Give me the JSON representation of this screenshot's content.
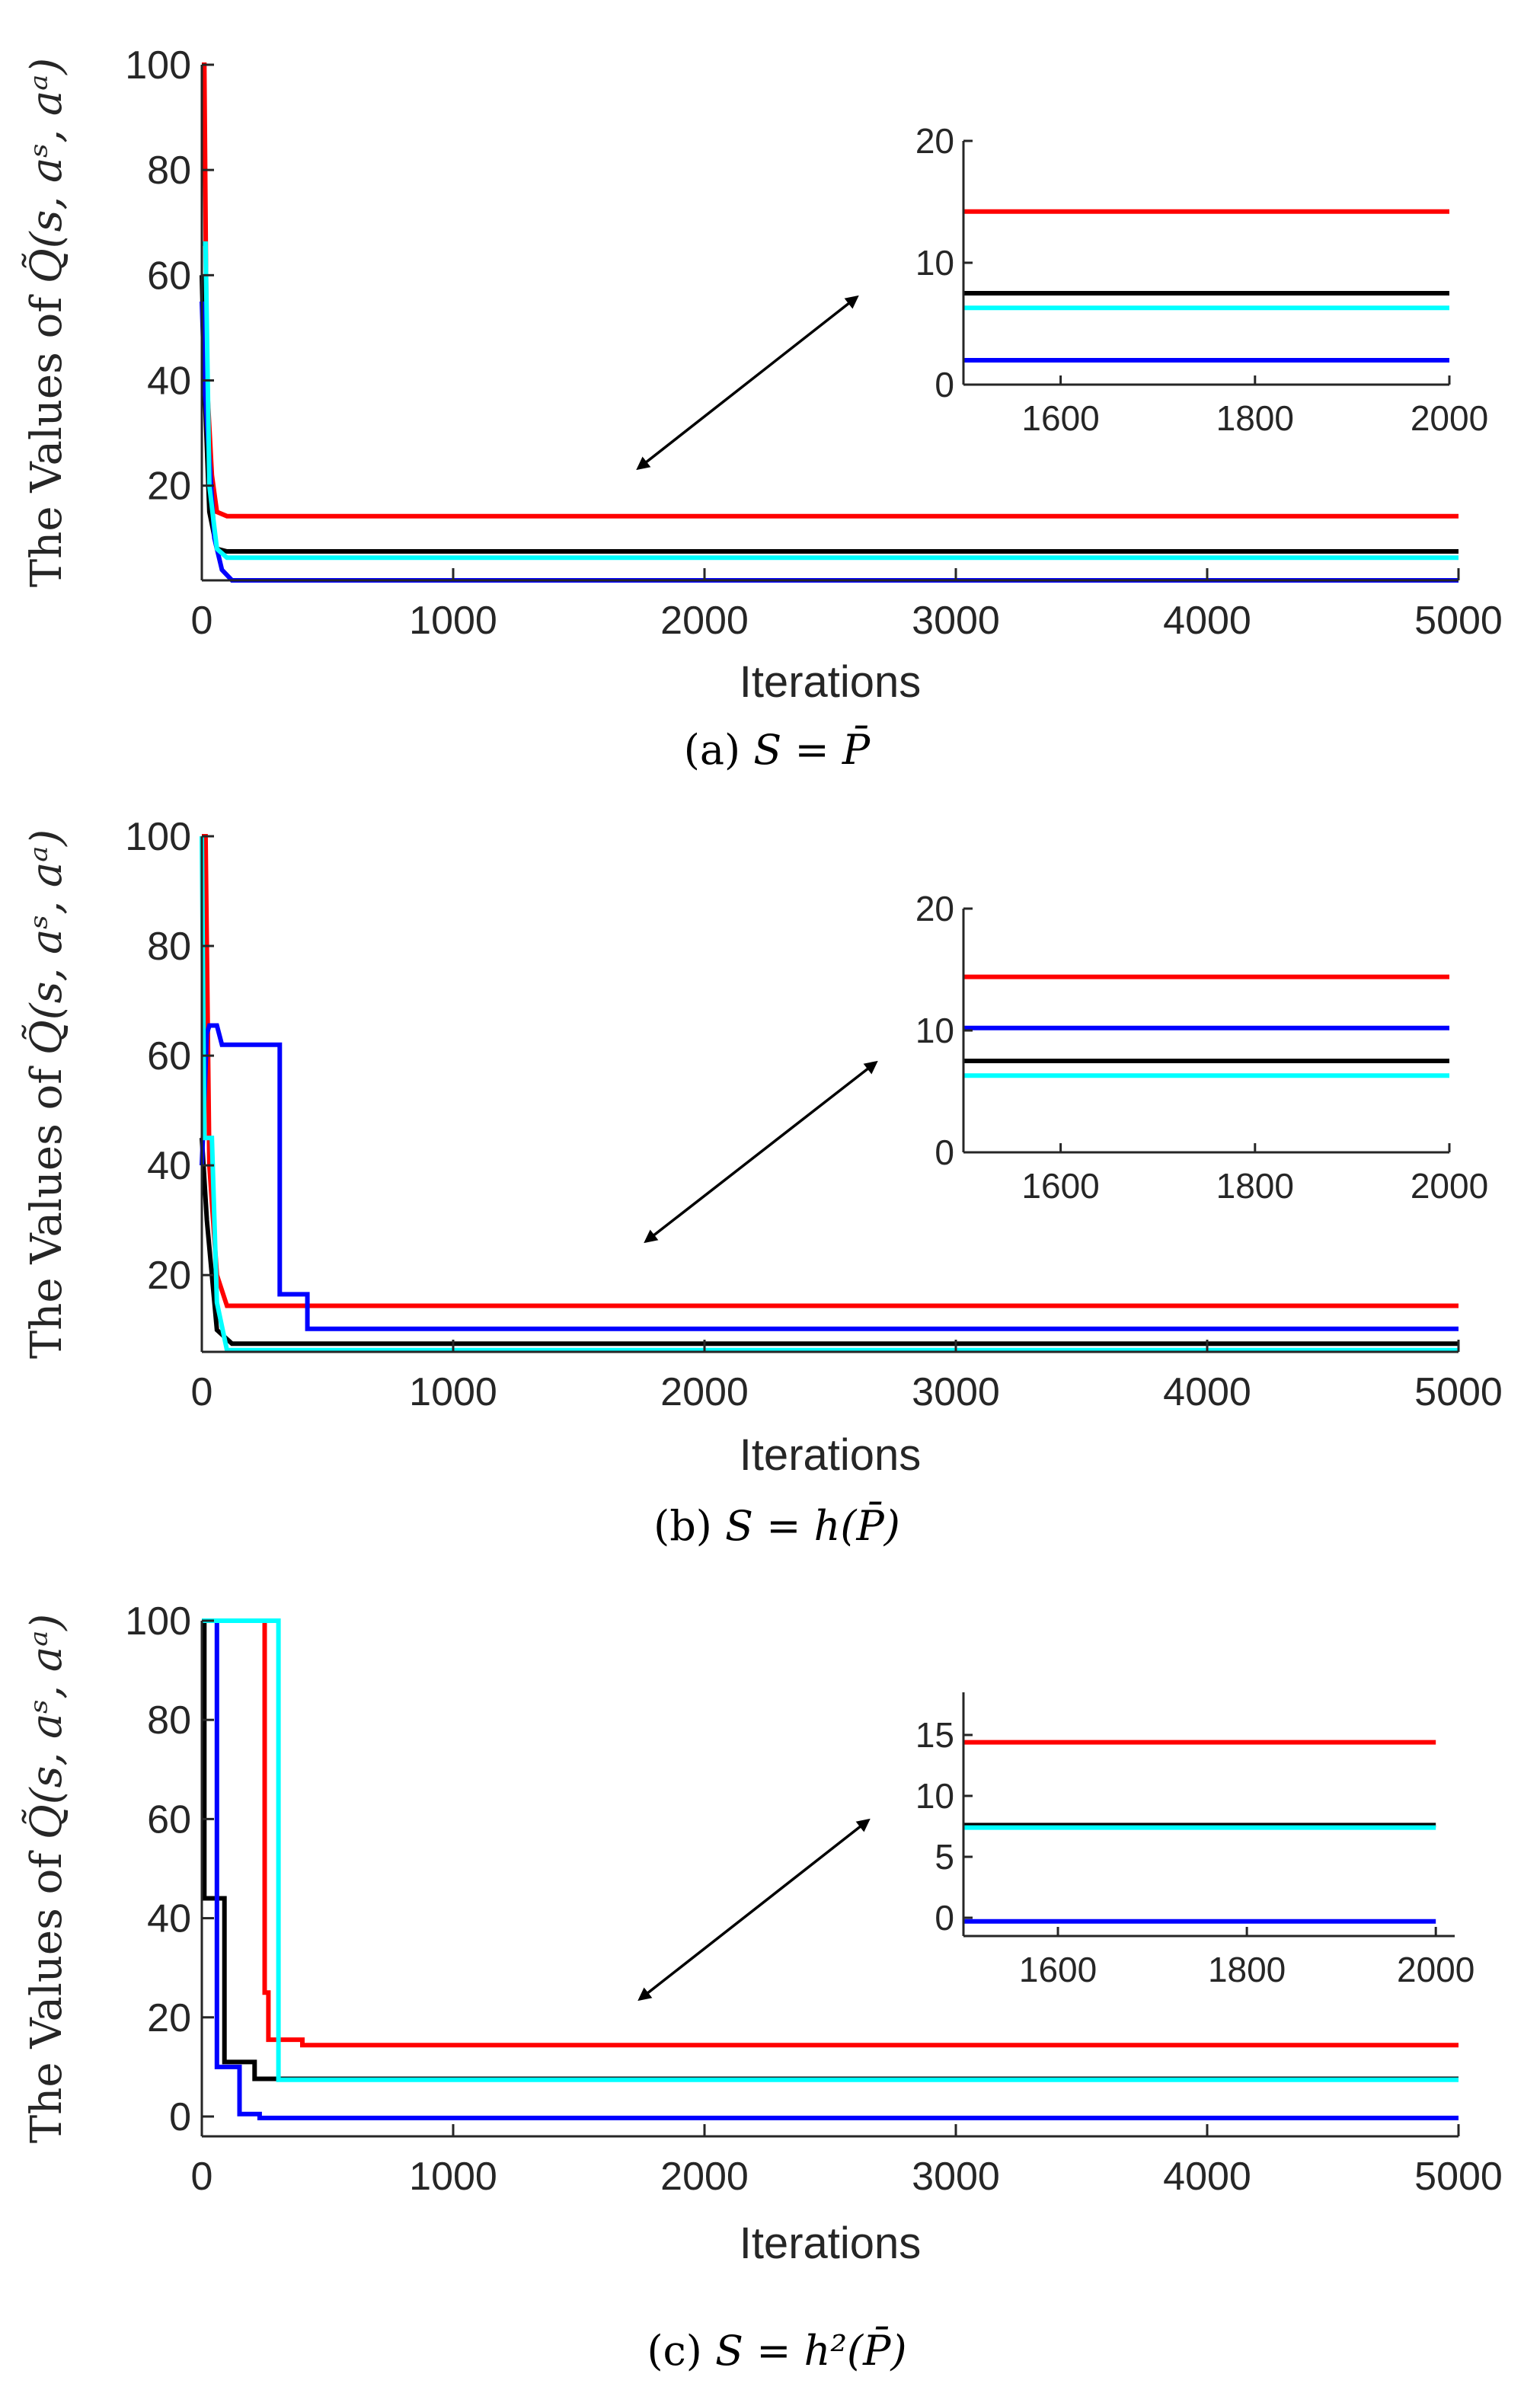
{
  "chart_data": [
    {
      "type": "line",
      "caption": {
        "label": "(a)",
        "lhs": "S",
        "eq": "=",
        "rhs": "P̄"
      },
      "ylabel": {
        "prefix": "The Values of ",
        "func": "Q̃",
        "args": "(s, aˢ, aᵃ)"
      },
      "xlabel": "Iterations",
      "xlim": [
        0,
        5000
      ],
      "ylim": [
        2,
        100
      ],
      "xticks": [
        0,
        1000,
        2000,
        3000,
        4000,
        5000
      ],
      "yticks": [
        20,
        40,
        60,
        80,
        100
      ],
      "series": [
        {
          "color": "#ff0000",
          "x": [
            0,
            10,
            20,
            40,
            60,
            100,
            5000
          ],
          "y": [
            100,
            100,
            40,
            22,
            15,
            14.2,
            14.2
          ]
        },
        {
          "color": "#000000",
          "x": [
            0,
            10,
            30,
            60,
            100,
            5000
          ],
          "y": [
            60,
            40,
            15,
            8,
            7.5,
            7.5
          ]
        },
        {
          "color": "#0000ff",
          "x": [
            0,
            10,
            30,
            50,
            80,
            120,
            5000
          ],
          "y": [
            55,
            40,
            25,
            10,
            4,
            2,
            2
          ]
        },
        {
          "color": "#00ffff",
          "x": [
            0,
            15,
            30,
            60,
            100,
            5000
          ],
          "y": [
            66,
            66,
            20,
            8,
            6.3,
            6.3
          ]
        }
      ],
      "inset": {
        "xlim": [
          1500,
          2000
        ],
        "ylim": [
          0,
          20
        ],
        "xticks": [
          1600,
          1800,
          2000
        ],
        "yticks": [
          0,
          10,
          20
        ],
        "series": [
          {
            "color": "#ff0000",
            "y": 14.2
          },
          {
            "color": "#000000",
            "y": 7.5
          },
          {
            "color": "#00ffff",
            "y": 6.3
          },
          {
            "color": "#0000ff",
            "y": 2
          }
        ]
      }
    },
    {
      "type": "line",
      "caption": {
        "label": "(b)",
        "lhs": "S",
        "eq": "=",
        "rhs": "h(P̄)"
      },
      "ylabel": {
        "prefix": "The Values of ",
        "func": "Q̃",
        "args": "(s, aˢ, aᵃ)"
      },
      "xlabel": "Iterations",
      "xlim": [
        0,
        5000
      ],
      "ylim": [
        6,
        100
      ],
      "xticks": [
        0,
        1000,
        2000,
        3000,
        4000,
        5000
      ],
      "yticks": [
        20,
        40,
        60,
        80,
        100
      ],
      "series": [
        {
          "color": "#ff0000",
          "x": [
            0,
            15,
            30,
            60,
            100,
            5000
          ],
          "y": [
            100,
            100,
            40,
            20,
            14.4,
            14.4
          ]
        },
        {
          "color": "#000000",
          "x": [
            0,
            20,
            40,
            60,
            120,
            5000
          ],
          "y": [
            45,
            30,
            20,
            10,
            7.5,
            7.5
          ]
        },
        {
          "color": "#0000ff",
          "x": [
            0,
            20,
            30,
            60,
            80,
            310,
            310,
            420,
            420,
            5000
          ],
          "y": [
            40,
            64,
            65.5,
            65.5,
            62,
            62,
            16.5,
            16.5,
            10.2,
            10.2
          ]
        },
        {
          "color": "#00ffff",
          "x": [
            0,
            10,
            40,
            60,
            100,
            5000
          ],
          "y": [
            100,
            45,
            45,
            15,
            6.3,
            6.3
          ]
        }
      ],
      "inset": {
        "xlim": [
          1500,
          2000
        ],
        "ylim": [
          0,
          20
        ],
        "xticks": [
          1600,
          1800,
          2000
        ],
        "yticks": [
          0,
          10,
          20
        ],
        "series": [
          {
            "color": "#ff0000",
            "y": 14.4
          },
          {
            "color": "#0000ff",
            "y": 10.2
          },
          {
            "color": "#000000",
            "y": 7.5
          },
          {
            "color": "#00ffff",
            "y": 6.3
          }
        ]
      }
    },
    {
      "type": "line",
      "caption": {
        "label": "(c)",
        "lhs": "S",
        "eq": "=",
        "rhs": "h²(P̄)"
      },
      "ylabel": {
        "prefix": "The Values of ",
        "func": "Q̃",
        "args": "(s, aˢ, aᵃ)"
      },
      "xlabel": "Iterations",
      "xlim": [
        0,
        5000
      ],
      "ylim": [
        -4,
        100
      ],
      "xticks": [
        0,
        1000,
        2000,
        3000,
        4000,
        5000
      ],
      "yticks": [
        0,
        20,
        40,
        60,
        80,
        100
      ],
      "series": [
        {
          "color": "#ff0000",
          "x": [
            0,
            250,
            250,
            265,
            265,
            400,
            400,
            5000
          ],
          "y": [
            100,
            100,
            25,
            25,
            15.5,
            15.5,
            14.4,
            14.4
          ]
        },
        {
          "color": "#000000",
          "x": [
            0,
            10,
            10,
            90,
            90,
            210,
            210,
            5000
          ],
          "y": [
            100,
            100,
            44,
            44,
            11,
            11,
            7.6,
            7.6
          ]
        },
        {
          "color": "#0000ff",
          "x": [
            0,
            60,
            60,
            150,
            150,
            230,
            230,
            5000
          ],
          "y": [
            100,
            100,
            10,
            10,
            0.5,
            0.5,
            -0.3,
            -0.3
          ]
        },
        {
          "color": "#00ffff",
          "x": [
            0,
            305,
            305,
            5000
          ],
          "y": [
            100,
            100,
            7.4,
            7.4
          ]
        }
      ],
      "inset": {
        "xlim": [
          1500,
          2020
        ],
        "ylim": [
          -1.5,
          18.5
        ],
        "xticks": [
          1600,
          1800,
          2000
        ],
        "yticks": [
          0,
          5,
          10,
          15
        ],
        "series": [
          {
            "color": "#ff0000",
            "y": 14.4
          },
          {
            "color": "#000000",
            "y": 7.6
          },
          {
            "color": "#00ffff",
            "y": 7.4
          },
          {
            "color": "#0000ff",
            "y": -0.3
          }
        ]
      }
    }
  ]
}
